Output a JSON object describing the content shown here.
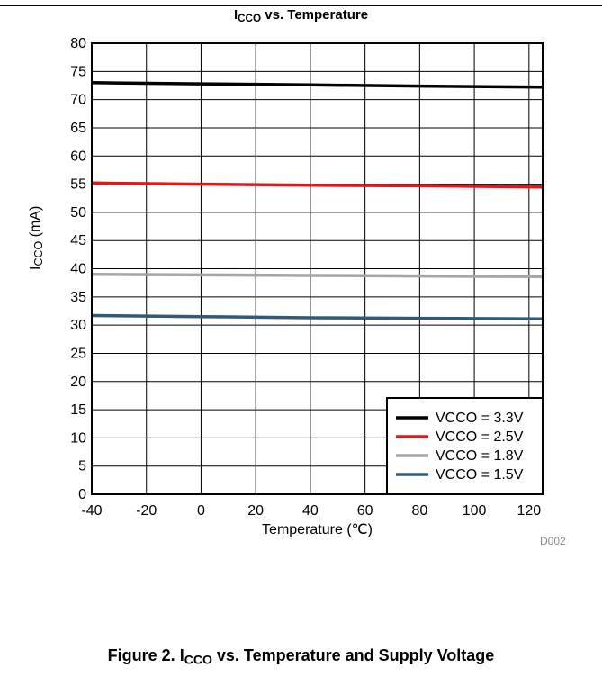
{
  "page": {
    "title_main": "I",
    "title_sub": "CCO",
    "title_rest": " vs. Temperature",
    "ylabel_main": "I",
    "ylabel_sub": "CCO",
    "ylabel_rest": " (mA)",
    "figure_id": "D002",
    "caption_prefix": "Figure 2. I",
    "caption_sub": "CCO",
    "caption_rest": " vs. Temperature and Supply Voltage"
  },
  "chart_data": {
    "type": "line",
    "title": "ICCO vs. Temperature",
    "xlabel": "Temperature (℃)",
    "ylabel": "ICCO (mA)",
    "xlim": [
      -40,
      125
    ],
    "ylim": [
      0,
      80
    ],
    "x_ticks": [
      -40,
      -20,
      0,
      20,
      40,
      60,
      80,
      100,
      120
    ],
    "y_ticks": [
      0,
      5,
      10,
      15,
      20,
      25,
      30,
      35,
      40,
      45,
      50,
      55,
      60,
      65,
      70,
      75,
      80
    ],
    "grid": true,
    "legend_position": "bottom-right",
    "series": [
      {
        "name": "VCCO = 3.3V",
        "color": "#000000",
        "x": [
          -40,
          0,
          40,
          80,
          125
        ],
        "y": [
          73.0,
          72.8,
          72.6,
          72.4,
          72.2
        ]
      },
      {
        "name": "VCCO = 2.5V",
        "color": "#e8141b",
        "x": [
          -40,
          0,
          40,
          80,
          125
        ],
        "y": [
          55.2,
          55.0,
          54.8,
          54.7,
          54.5
        ]
      },
      {
        "name": "VCCO = 1.8V",
        "color": "#a6a6a6",
        "x": [
          -40,
          0,
          40,
          80,
          125
        ],
        "y": [
          39.0,
          38.9,
          38.8,
          38.7,
          38.6
        ]
      },
      {
        "name": "VCCO = 1.5V",
        "color": "#2f5a7a",
        "x": [
          -40,
          0,
          40,
          80,
          125
        ],
        "y": [
          31.7,
          31.5,
          31.3,
          31.2,
          31.1
        ]
      }
    ]
  }
}
